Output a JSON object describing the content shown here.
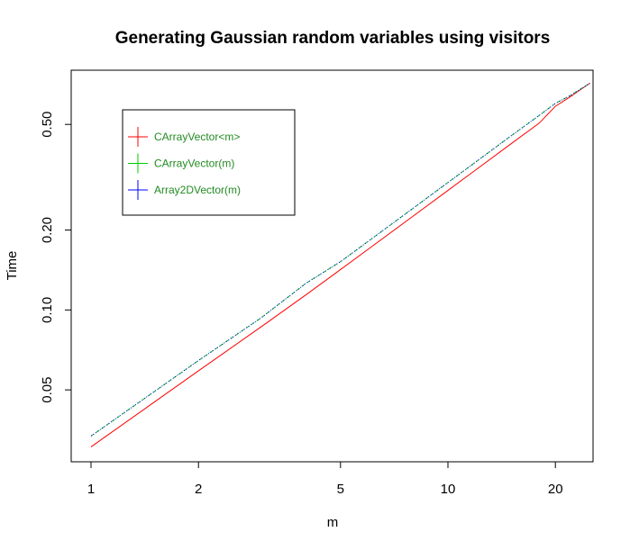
{
  "chart_data": {
    "type": "line",
    "title": "Generating Gaussian random variables using visitors",
    "xlabel": "m",
    "ylabel": "Time",
    "x_scale": "log",
    "y_scale": "log",
    "xlim": [
      0.88,
      25.5
    ],
    "ylim": [
      0.0268,
      0.8
    ],
    "x_ticks": [
      1,
      2,
      5,
      10,
      20
    ],
    "x_tick_labels": [
      "1",
      "2",
      "5",
      "10",
      "20"
    ],
    "y_ticks": [
      0.05,
      0.1,
      0.2,
      0.5
    ],
    "y_tick_labels": [
      "0.05",
      "0.10",
      "0.20",
      "0.50"
    ],
    "grid": false,
    "legend_position": "top-left",
    "series": [
      {
        "name": "CArrayVector<m>",
        "color": "#ff0000",
        "style": "solid",
        "x": [
          1,
          2,
          3,
          4,
          5,
          6,
          8,
          10,
          12,
          15,
          18,
          20,
          22,
          25
        ],
        "y": [
          0.0305,
          0.059,
          0.0865,
          0.114,
          0.142,
          0.17,
          0.226,
          0.282,
          0.338,
          0.422,
          0.505,
          0.585,
          0.635,
          0.715
        ]
      },
      {
        "name": "CArrayVector(m)",
        "color": "#00cd00",
        "style": "dashed",
        "x": [
          1,
          2,
          3,
          4,
          5,
          6,
          8,
          10,
          12,
          15,
          18,
          20,
          22,
          25
        ],
        "y": [
          0.0335,
          0.0645,
          0.0935,
          0.126,
          0.152,
          0.182,
          0.242,
          0.302,
          0.362,
          0.452,
          0.54,
          0.6,
          0.642,
          0.715
        ]
      },
      {
        "name": "Array2DVector(m)",
        "color": "#0000ff",
        "style": "dotted",
        "x": [
          1,
          2,
          3,
          4,
          5,
          6,
          8,
          10,
          12,
          15,
          18,
          20,
          22,
          25
        ],
        "y": [
          0.0335,
          0.0645,
          0.0935,
          0.126,
          0.152,
          0.182,
          0.242,
          0.302,
          0.362,
          0.452,
          0.54,
          0.6,
          0.642,
          0.715
        ]
      }
    ]
  }
}
